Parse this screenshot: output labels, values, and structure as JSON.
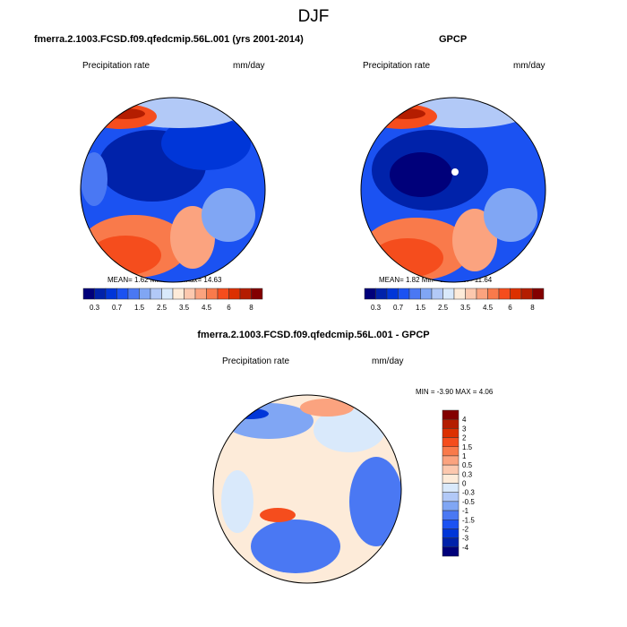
{
  "title": "DJF",
  "panels": [
    {
      "title": "fmerra.2.1003.FCSD.f09.qfedcmip.56L.001 (yrs 2001-2014)",
      "left_label": "Precipitation rate",
      "right_label": "mm/day",
      "stats": "MEAN=  1.62  Min=  0.16  Max=  14.63"
    },
    {
      "title": "GPCP",
      "left_label": "Precipitation rate",
      "right_label": "mm/day",
      "stats": "MEAN=  1.82  Min=  0.11  Max=  11.64"
    },
    {
      "title": "fmerra.2.1003.FCSD.f09.qfedcmip.56L.001 - GPCP",
      "left_label": "Precipitation rate",
      "right_label": "mm/day",
      "stats": "MIN =  -3.90 MAX =   4.06"
    }
  ],
  "colorbar_main": {
    "labels": [
      "0.3",
      "0.7",
      "1.5",
      "2.5",
      "3.5",
      "4.5",
      "6",
      "8"
    ],
    "colors": [
      "#00007a",
      "#0022aa",
      "#0036d8",
      "#1b52f2",
      "#4a78f3",
      "#80a6f4",
      "#b2c9f7",
      "#d9e9fb",
      "#fdebd9",
      "#fcc8ae",
      "#fba37f",
      "#f97a4b",
      "#f54d1d",
      "#dc3000",
      "#b41d00",
      "#830000"
    ]
  },
  "colorbar_diff": {
    "labels": [
      "4",
      "3",
      "2",
      "1.5",
      "1",
      "0.5",
      "0.3",
      "0",
      "-0.3",
      "-0.5",
      "-1",
      "-1.5",
      "-2",
      "-3",
      "-4"
    ],
    "colors": [
      "#830000",
      "#b41d00",
      "#dc3000",
      "#f54d1d",
      "#f97a4b",
      "#fba37f",
      "#fcc8ae",
      "#fdebd9",
      "#d9e9fb",
      "#b2c9f7",
      "#80a6f4",
      "#4a78f3",
      "#1b52f2",
      "#0036d8",
      "#0022aa",
      "#00007a"
    ]
  }
}
